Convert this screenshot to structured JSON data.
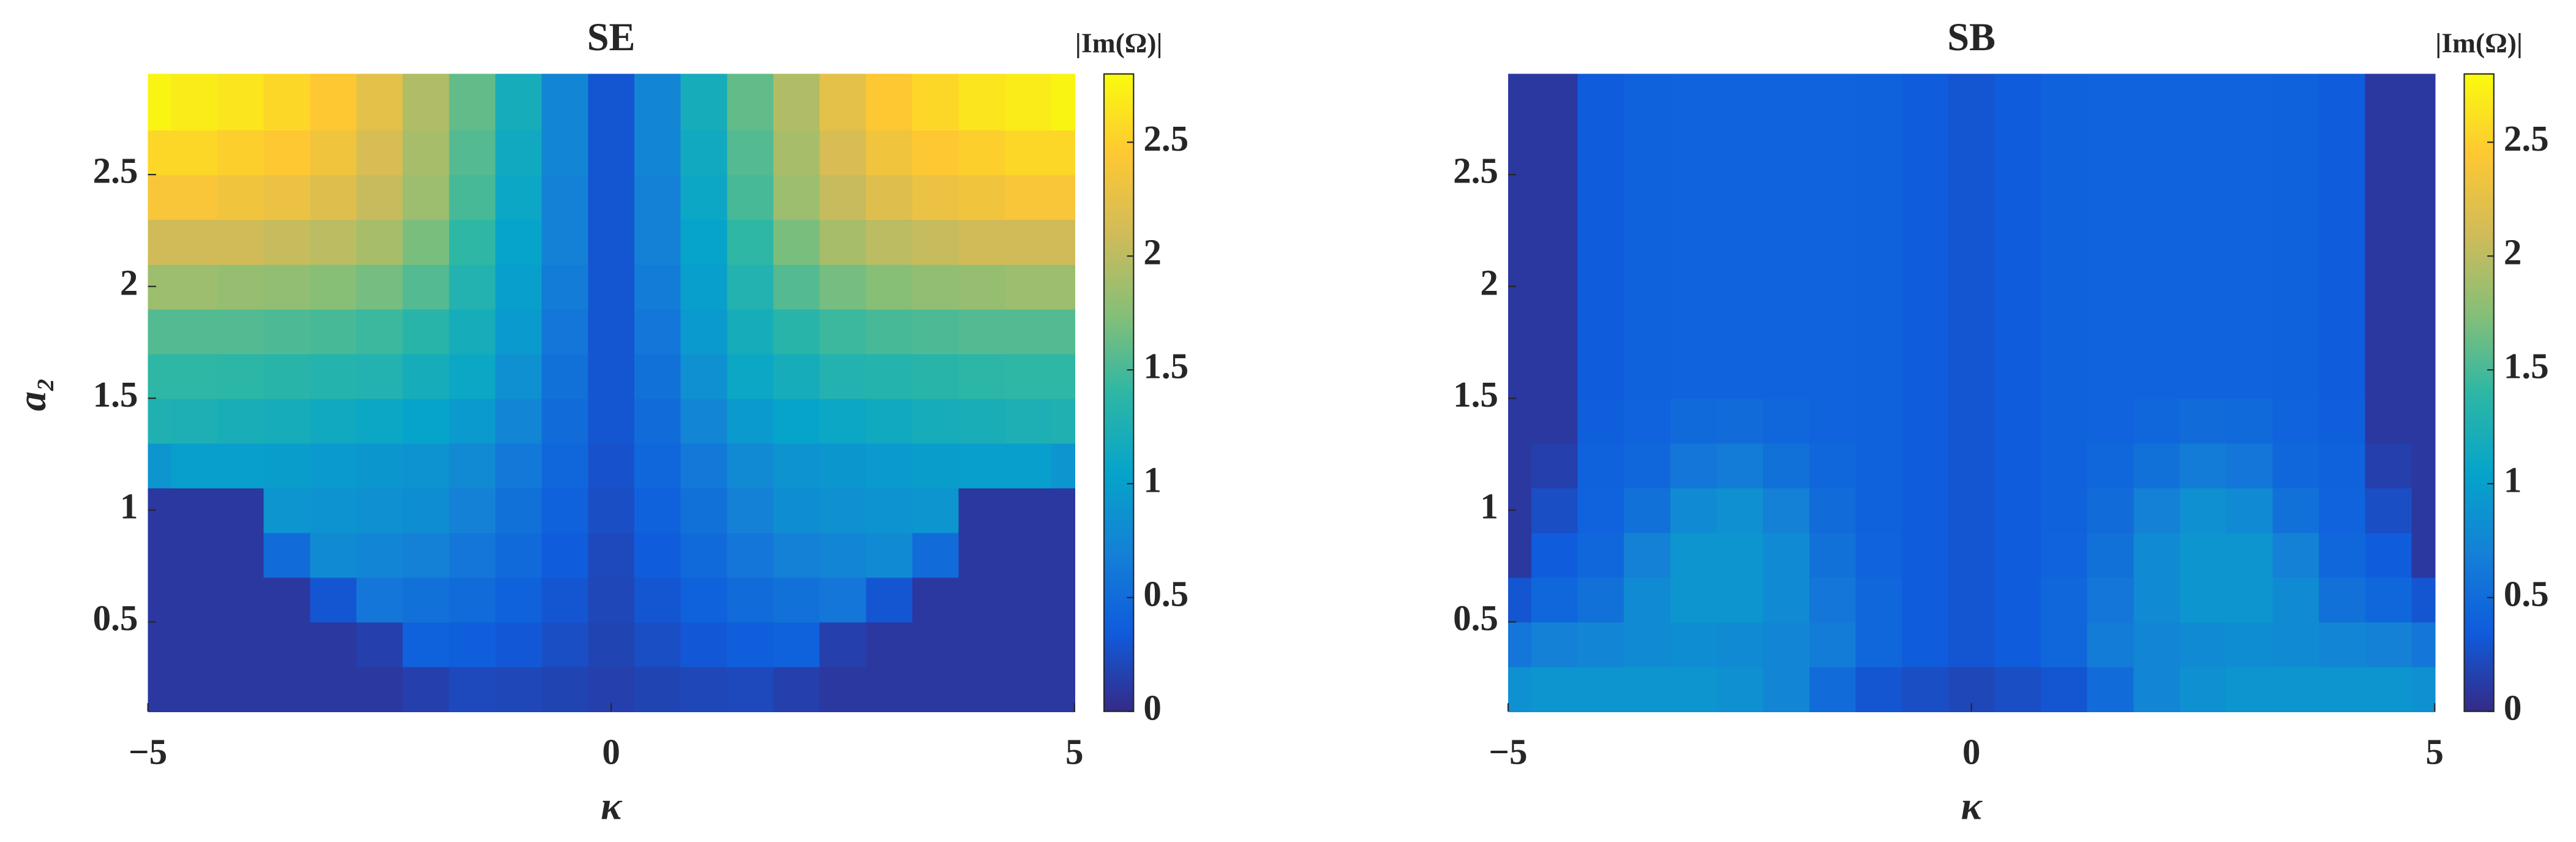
{
  "chart_data": [
    {
      "type": "heatmap",
      "title": "SE",
      "xlabel": "κ",
      "ylabel": "a₂",
      "colorbar_label": "|Im(Ω)|",
      "xlim": [
        -5,
        5
      ],
      "ylim": [
        0.1,
        2.95
      ],
      "clim": [
        0,
        2.8
      ],
      "xticks": [
        {
          "value": -5,
          "label": "−5"
        },
        0,
        5
      ],
      "yticks": [
        0.5,
        1,
        1.5,
        2,
        2.5
      ],
      "cticks": [
        0,
        0.5,
        1,
        1.5,
        2,
        2.5
      ],
      "colormap": [
        "#352a87",
        "#0f5cdd",
        "#1481d6",
        "#06a4ca",
        "#2eb7a4",
        "#87bf77",
        "#d1bb59",
        "#fec832",
        "#f9fb0e"
      ],
      "x": [
        -5,
        -4.5,
        -4,
        -3.5,
        -3,
        -2.5,
        -2,
        -1.5,
        -1,
        -0.5,
        0,
        0.5,
        1,
        1.5,
        2,
        2.5,
        3,
        3.5,
        4,
        4.5,
        5
      ],
      "y": [
        0.2,
        0.4,
        0.6,
        0.8,
        1.0,
        1.2,
        1.4,
        1.6,
        1.8,
        2.0,
        2.2,
        2.4,
        2.6,
        2.8
      ],
      "z": [
        [
          0.1,
          0.1,
          0.1,
          0.1,
          0.1,
          0.1,
          0.15,
          0.22,
          0.2,
          0.18,
          0.15,
          0.18,
          0.2,
          0.22,
          0.15,
          0.1,
          0.1,
          0.1,
          0.1,
          0.1,
          0.1
        ],
        [
          0.1,
          0.1,
          0.1,
          0.1,
          0.1,
          0.15,
          0.4,
          0.38,
          0.32,
          0.25,
          0.18,
          0.25,
          0.32,
          0.38,
          0.4,
          0.15,
          0.1,
          0.1,
          0.1,
          0.1,
          0.1
        ],
        [
          0.1,
          0.1,
          0.1,
          0.1,
          0.3,
          0.6,
          0.55,
          0.5,
          0.4,
          0.3,
          0.2,
          0.3,
          0.4,
          0.5,
          0.55,
          0.6,
          0.3,
          0.1,
          0.1,
          0.1,
          0.1
        ],
        [
          0.1,
          0.1,
          0.1,
          0.5,
          0.8,
          0.75,
          0.7,
          0.6,
          0.48,
          0.35,
          0.22,
          0.35,
          0.48,
          0.6,
          0.7,
          0.75,
          0.8,
          0.5,
          0.1,
          0.1,
          0.1
        ],
        [
          0.1,
          0.1,
          0.1,
          0.9,
          0.88,
          0.85,
          0.82,
          0.7,
          0.55,
          0.4,
          0.25,
          0.4,
          0.55,
          0.7,
          0.82,
          0.85,
          0.88,
          0.9,
          0.1,
          0.1,
          0.1
        ],
        [
          0.9,
          1.0,
          1.0,
          0.98,
          0.95,
          0.92,
          0.88,
          0.78,
          0.62,
          0.45,
          0.28,
          0.45,
          0.62,
          0.78,
          0.88,
          0.92,
          0.95,
          0.98,
          1.0,
          1.0,
          0.9
        ],
        [
          1.28,
          1.25,
          1.22,
          1.2,
          1.15,
          1.1,
          1.05,
          0.95,
          0.75,
          0.5,
          0.3,
          0.5,
          0.75,
          0.95,
          1.05,
          1.1,
          1.15,
          1.2,
          1.22,
          1.25,
          1.28
        ],
        [
          1.4,
          1.4,
          1.38,
          1.35,
          1.32,
          1.3,
          1.2,
          1.1,
          0.85,
          0.55,
          0.3,
          0.55,
          0.85,
          1.1,
          1.2,
          1.3,
          1.32,
          1.35,
          1.38,
          1.4,
          1.4
        ],
        [
          1.55,
          1.55,
          1.55,
          1.52,
          1.5,
          1.45,
          1.35,
          1.2,
          0.95,
          0.6,
          0.3,
          0.6,
          0.95,
          1.2,
          1.35,
          1.45,
          1.5,
          1.52,
          1.55,
          1.55,
          1.55
        ],
        [
          1.85,
          1.85,
          1.82,
          1.8,
          1.75,
          1.68,
          1.55,
          1.3,
          1.0,
          0.65,
          0.3,
          0.65,
          1.0,
          1.3,
          1.55,
          1.68,
          1.75,
          1.8,
          1.82,
          1.85,
          1.85
        ],
        [
          2.1,
          2.1,
          2.1,
          2.05,
          2.0,
          1.9,
          1.7,
          1.4,
          1.05,
          0.7,
          0.3,
          0.7,
          1.05,
          1.4,
          1.7,
          1.9,
          2.0,
          2.05,
          2.1,
          2.1,
          2.1
        ],
        [
          2.4,
          2.4,
          2.35,
          2.3,
          2.2,
          2.05,
          1.85,
          1.5,
          1.1,
          0.7,
          0.3,
          0.7,
          1.1,
          1.5,
          1.85,
          2.05,
          2.2,
          2.3,
          2.35,
          2.4,
          2.4
        ],
        [
          2.55,
          2.55,
          2.5,
          2.45,
          2.35,
          2.15,
          1.9,
          1.55,
          1.15,
          0.75,
          0.3,
          0.75,
          1.15,
          1.55,
          1.9,
          2.15,
          2.35,
          2.45,
          2.5,
          2.55,
          2.55
        ],
        [
          2.75,
          2.7,
          2.65,
          2.55,
          2.45,
          2.25,
          1.95,
          1.6,
          1.2,
          0.75,
          0.3,
          0.75,
          1.2,
          1.6,
          1.95,
          2.25,
          2.45,
          2.55,
          2.65,
          2.7,
          2.75
        ]
      ]
    },
    {
      "type": "heatmap",
      "title": "SB",
      "xlabel": "κ",
      "colorbar_label": "|Im(Ω)|",
      "xlim": [
        -5,
        5
      ],
      "ylim": [
        0.1,
        2.95
      ],
      "clim": [
        0,
        2.8
      ],
      "xticks": [
        {
          "value": -5,
          "label": "−5"
        },
        0,
        5
      ],
      "yticks": [
        0.5,
        1,
        1.5,
        2,
        2.5
      ],
      "cticks": [
        0,
        0.5,
        1,
        1.5,
        2,
        2.5
      ],
      "colormap": [
        "#352a87",
        "#0f5cdd",
        "#1481d6",
        "#06a4ca",
        "#2eb7a4",
        "#87bf77",
        "#d1bb59",
        "#fec832",
        "#f9fb0e"
      ],
      "x": [
        -5,
        -4.5,
        -4,
        -3.5,
        -3,
        -2.5,
        -2,
        -1.5,
        -1,
        -0.5,
        0,
        0.5,
        1,
        1.5,
        2,
        2.5,
        3,
        3.5,
        4,
        4.5,
        5
      ],
      "y": [
        0.2,
        0.4,
        0.6,
        0.8,
        1.0,
        1.2,
        1.4,
        1.6,
        1.8,
        2.0,
        2.2,
        2.4,
        2.6,
        2.8
      ],
      "z": [
        [
          0.85,
          0.9,
          0.9,
          0.9,
          0.9,
          0.85,
          0.75,
          0.5,
          0.3,
          0.25,
          0.2,
          0.25,
          0.3,
          0.5,
          0.75,
          0.85,
          0.9,
          0.9,
          0.9,
          0.9,
          0.85
        ],
        [
          0.6,
          0.7,
          0.75,
          0.8,
          0.82,
          0.8,
          0.75,
          0.65,
          0.45,
          0.35,
          0.3,
          0.35,
          0.45,
          0.65,
          0.75,
          0.8,
          0.82,
          0.8,
          0.75,
          0.7,
          0.6
        ],
        [
          0.3,
          0.45,
          0.55,
          0.8,
          0.9,
          0.9,
          0.8,
          0.6,
          0.45,
          0.35,
          0.3,
          0.35,
          0.45,
          0.6,
          0.8,
          0.9,
          0.9,
          0.8,
          0.55,
          0.45,
          0.3
        ],
        [
          0.1,
          0.35,
          0.45,
          0.7,
          0.9,
          0.9,
          0.8,
          0.55,
          0.42,
          0.35,
          0.3,
          0.35,
          0.42,
          0.55,
          0.8,
          0.9,
          0.9,
          0.7,
          0.45,
          0.35,
          0.1
        ],
        [
          0.1,
          0.25,
          0.42,
          0.55,
          0.8,
          0.85,
          0.7,
          0.5,
          0.4,
          0.35,
          0.3,
          0.35,
          0.4,
          0.5,
          0.7,
          0.85,
          0.8,
          0.55,
          0.42,
          0.25,
          0.1
        ],
        [
          0.1,
          0.15,
          0.4,
          0.45,
          0.6,
          0.65,
          0.55,
          0.45,
          0.4,
          0.35,
          0.3,
          0.35,
          0.4,
          0.45,
          0.55,
          0.65,
          0.6,
          0.45,
          0.4,
          0.15,
          0.1
        ],
        [
          0.1,
          0.1,
          0.38,
          0.42,
          0.48,
          0.5,
          0.45,
          0.42,
          0.4,
          0.35,
          0.3,
          0.35,
          0.4,
          0.42,
          0.45,
          0.5,
          0.48,
          0.42,
          0.38,
          0.1,
          0.1
        ],
        [
          0.1,
          0.1,
          0.35,
          0.4,
          0.42,
          0.42,
          0.42,
          0.42,
          0.4,
          0.35,
          0.3,
          0.35,
          0.4,
          0.42,
          0.42,
          0.42,
          0.42,
          0.4,
          0.35,
          0.1,
          0.1
        ],
        [
          0.1,
          0.1,
          0.35,
          0.4,
          0.42,
          0.42,
          0.42,
          0.42,
          0.4,
          0.35,
          0.3,
          0.35,
          0.4,
          0.42,
          0.42,
          0.42,
          0.42,
          0.4,
          0.35,
          0.1,
          0.1
        ],
        [
          0.1,
          0.1,
          0.35,
          0.4,
          0.42,
          0.42,
          0.42,
          0.42,
          0.4,
          0.35,
          0.3,
          0.35,
          0.4,
          0.42,
          0.42,
          0.42,
          0.42,
          0.4,
          0.35,
          0.1,
          0.1
        ],
        [
          0.1,
          0.1,
          0.35,
          0.4,
          0.42,
          0.42,
          0.42,
          0.42,
          0.4,
          0.35,
          0.3,
          0.35,
          0.4,
          0.42,
          0.42,
          0.42,
          0.42,
          0.4,
          0.35,
          0.1,
          0.1
        ],
        [
          0.1,
          0.1,
          0.35,
          0.4,
          0.42,
          0.42,
          0.42,
          0.42,
          0.4,
          0.35,
          0.3,
          0.35,
          0.4,
          0.42,
          0.42,
          0.42,
          0.42,
          0.4,
          0.35,
          0.1,
          0.1
        ],
        [
          0.1,
          0.1,
          0.35,
          0.4,
          0.42,
          0.42,
          0.42,
          0.42,
          0.4,
          0.35,
          0.3,
          0.35,
          0.4,
          0.42,
          0.42,
          0.42,
          0.42,
          0.4,
          0.35,
          0.1,
          0.1
        ],
        [
          0.1,
          0.1,
          0.35,
          0.4,
          0.42,
          0.42,
          0.42,
          0.42,
          0.4,
          0.35,
          0.3,
          0.35,
          0.4,
          0.42,
          0.42,
          0.42,
          0.42,
          0.4,
          0.35,
          0.1,
          0.1
        ]
      ]
    }
  ]
}
